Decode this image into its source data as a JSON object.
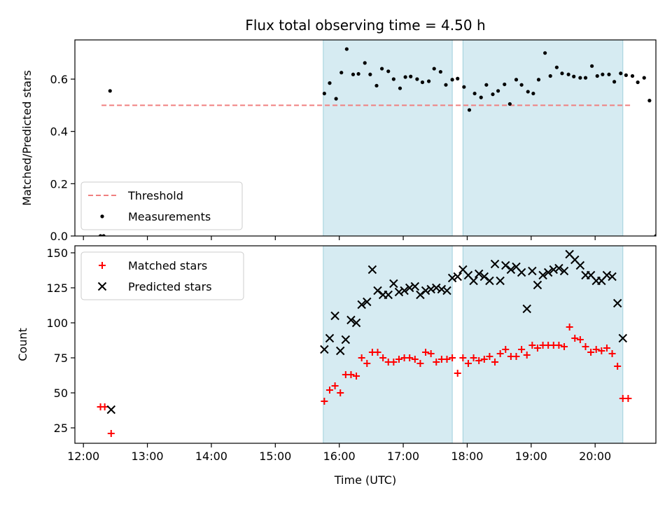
{
  "chart_data": {
    "title": "Flux total observing time = 4.50 h",
    "x_ticks": [
      "12:00",
      "13:00",
      "14:00",
      "15:00",
      "16:00",
      "17:00",
      "18:00",
      "19:00",
      "20:00"
    ],
    "xlabel": "Time (UTC)",
    "xlim": [
      "11:52",
      "20:57"
    ],
    "observing_windows": [
      {
        "start": "15:45",
        "end": "17:46"
      },
      {
        "start": "17:56",
        "end": "20:26"
      }
    ],
    "panels": [
      {
        "type": "scatter",
        "ylabel": "Matched/Predicted stars",
        "ylim": [
          0,
          0.75
        ],
        "y_ticks": [
          "0.0",
          "0.2",
          "0.4",
          "0.6"
        ],
        "y_tick_values": [
          0,
          0.2,
          0.4,
          0.6
        ],
        "legend_placement": "lower-left",
        "threshold": {
          "name": "Threshold",
          "value": 0.5,
          "x_start": "12:17",
          "x_end": "20:33",
          "color": "#f08080"
        },
        "series": [
          {
            "name": "Measurements",
            "color": "#000000",
            "marker": "dot",
            "points": [
              [
                "12:16",
                0.0
              ],
              [
                "12:19",
                0.0
              ],
              [
                "12:25",
                0.555
              ],
              [
                "15:46",
                0.545
              ],
              [
                "15:51",
                0.585
              ],
              [
                "15:57",
                0.525
              ],
              [
                "16:02",
                0.625
              ],
              [
                "16:07",
                0.715
              ],
              [
                "16:13",
                0.618
              ],
              [
                "16:18",
                0.62
              ],
              [
                "16:24",
                0.662
              ],
              [
                "16:29",
                0.618
              ],
              [
                "16:35",
                0.575
              ],
              [
                "16:40",
                0.64
              ],
              [
                "16:46",
                0.63
              ],
              [
                "16:51",
                0.6
              ],
              [
                "16:57",
                0.565
              ],
              [
                "17:02",
                0.608
              ],
              [
                "17:07",
                0.61
              ],
              [
                "17:13",
                0.6
              ],
              [
                "17:18",
                0.588
              ],
              [
                "17:24",
                0.592
              ],
              [
                "17:29",
                0.64
              ],
              [
                "17:35",
                0.628
              ],
              [
                "17:40",
                0.578
              ],
              [
                "17:46",
                0.598
              ],
              [
                "17:51",
                0.602
              ],
              [
                "17:57",
                0.57
              ],
              [
                "18:02",
                0.482
              ],
              [
                "18:07",
                0.545
              ],
              [
                "18:13",
                0.53
              ],
              [
                "18:18",
                0.578
              ],
              [
                "18:24",
                0.542
              ],
              [
                "18:29",
                0.555
              ],
              [
                "18:35",
                0.58
              ],
              [
                "18:40",
                0.505
              ],
              [
                "18:46",
                0.598
              ],
              [
                "18:51",
                0.578
              ],
              [
                "18:57",
                0.552
              ],
              [
                "19:02",
                0.545
              ],
              [
                "19:07",
                0.598
              ],
              [
                "19:13",
                0.7
              ],
              [
                "19:18",
                0.612
              ],
              [
                "19:24",
                0.645
              ],
              [
                "19:29",
                0.622
              ],
              [
                "19:35",
                0.618
              ],
              [
                "19:40",
                0.61
              ],
              [
                "19:46",
                0.605
              ],
              [
                "19:51",
                0.605
              ],
              [
                "19:57",
                0.65
              ],
              [
                "20:02",
                0.612
              ],
              [
                "20:07",
                0.618
              ],
              [
                "20:13",
                0.618
              ],
              [
                "20:18",
                0.59
              ],
              [
                "20:24",
                0.622
              ],
              [
                "20:29",
                0.615
              ],
              [
                "20:35",
                0.612
              ],
              [
                "20:40",
                0.588
              ],
              [
                "20:46",
                0.605
              ],
              [
                "20:51",
                0.518
              ],
              [
                "20:57",
                0.0
              ]
            ]
          }
        ]
      },
      {
        "type": "scatter",
        "ylabel": "Count",
        "ylim": [
          14,
          155
        ],
        "y_ticks": [
          "25",
          "50",
          "75",
          "100",
          "125",
          "150"
        ],
        "y_tick_values": [
          25,
          50,
          75,
          100,
          125,
          150
        ],
        "legend_placement": "top-left",
        "series": [
          {
            "name": "Matched stars",
            "color": "#ff0000",
            "marker": "plus",
            "points": [
              [
                "12:16",
                40
              ],
              [
                "12:20",
                40
              ],
              [
                "12:26",
                21
              ],
              [
                "15:46",
                44
              ],
              [
                "15:51",
                52
              ],
              [
                "15:56",
                55
              ],
              [
                "16:01",
                50
              ],
              [
                "16:06",
                63
              ],
              [
                "16:11",
                63
              ],
              [
                "16:16",
                62
              ],
              [
                "16:21",
                75
              ],
              [
                "16:26",
                71
              ],
              [
                "16:31",
                79
              ],
              [
                "16:36",
                79
              ],
              [
                "16:41",
                75
              ],
              [
                "16:46",
                72
              ],
              [
                "16:51",
                72
              ],
              [
                "16:56",
                74
              ],
              [
                "17:01",
                75
              ],
              [
                "17:06",
                75
              ],
              [
                "17:11",
                74
              ],
              [
                "17:16",
                71
              ],
              [
                "17:21",
                79
              ],
              [
                "17:26",
                78
              ],
              [
                "17:31",
                72
              ],
              [
                "17:36",
                74
              ],
              [
                "17:41",
                74
              ],
              [
                "17:46",
                75
              ],
              [
                "17:51",
                64
              ],
              [
                "17:56",
                75
              ],
              [
                "18:01",
                71
              ],
              [
                "18:06",
                75
              ],
              [
                "18:11",
                73
              ],
              [
                "18:16",
                74
              ],
              [
                "18:21",
                76
              ],
              [
                "18:26",
                72
              ],
              [
                "18:31",
                78
              ],
              [
                "18:36",
                81
              ],
              [
                "18:41",
                76
              ],
              [
                "18:46",
                76
              ],
              [
                "18:51",
                81
              ],
              [
                "18:56",
                77
              ],
              [
                "19:01",
                84
              ],
              [
                "19:06",
                82
              ],
              [
                "19:11",
                84
              ],
              [
                "19:16",
                84
              ],
              [
                "19:21",
                84
              ],
              [
                "19:26",
                84
              ],
              [
                "19:31",
                83
              ],
              [
                "19:36",
                97
              ],
              [
                "19:41",
                89
              ],
              [
                "19:46",
                88
              ],
              [
                "19:51",
                83
              ],
              [
                "19:56",
                79
              ],
              [
                "20:01",
                81
              ],
              [
                "20:06",
                80
              ],
              [
                "20:11",
                82
              ],
              [
                "20:16",
                78
              ],
              [
                "20:21",
                69
              ],
              [
                "20:26",
                46
              ],
              [
                "20:31",
                46
              ]
            ]
          },
          {
            "name": "Predicted stars",
            "color": "#000000",
            "marker": "cross",
            "points": [
              [
                "12:26",
                38
              ],
              [
                "15:46",
                81
              ],
              [
                "15:51",
                89
              ],
              [
                "15:56",
                105
              ],
              [
                "16:01",
                80
              ],
              [
                "16:06",
                88
              ],
              [
                "16:11",
                102
              ],
              [
                "16:16",
                100
              ],
              [
                "16:21",
                113
              ],
              [
                "16:26",
                115
              ],
              [
                "16:31",
                138
              ],
              [
                "16:36",
                123
              ],
              [
                "16:41",
                120
              ],
              [
                "16:46",
                120
              ],
              [
                "16:51",
                128
              ],
              [
                "16:56",
                122
              ],
              [
                "17:01",
                123
              ],
              [
                "17:06",
                125
              ],
              [
                "17:11",
                126
              ],
              [
                "17:16",
                120
              ],
              [
                "17:21",
                123
              ],
              [
                "17:26",
                124
              ],
              [
                "17:31",
                125
              ],
              [
                "17:36",
                124
              ],
              [
                "17:41",
                123
              ],
              [
                "17:46",
                132
              ],
              [
                "17:51",
                133
              ],
              [
                "17:56",
                138
              ],
              [
                "18:01",
                134
              ],
              [
                "18:06",
                130
              ],
              [
                "18:11",
                135
              ],
              [
                "18:16",
                133
              ],
              [
                "18:21",
                130
              ],
              [
                "18:26",
                142
              ],
              [
                "18:31",
                130
              ],
              [
                "18:36",
                141
              ],
              [
                "18:41",
                138
              ],
              [
                "18:46",
                140
              ],
              [
                "18:51",
                136
              ],
              [
                "18:56",
                110
              ],
              [
                "19:01",
                137
              ],
              [
                "19:06",
                127
              ],
              [
                "19:11",
                134
              ],
              [
                "19:16",
                136
              ],
              [
                "19:21",
                138
              ],
              [
                "19:26",
                139
              ],
              [
                "19:31",
                137
              ],
              [
                "19:36",
                149
              ],
              [
                "19:41",
                145
              ],
              [
                "19:46",
                141
              ],
              [
                "19:51",
                134
              ],
              [
                "19:56",
                134
              ],
              [
                "20:01",
                130
              ],
              [
                "20:06",
                130
              ],
              [
                "20:11",
                134
              ],
              [
                "20:16",
                133
              ],
              [
                "20:21",
                114
              ],
              [
                "20:26",
                89
              ]
            ]
          }
        ]
      }
    ]
  }
}
